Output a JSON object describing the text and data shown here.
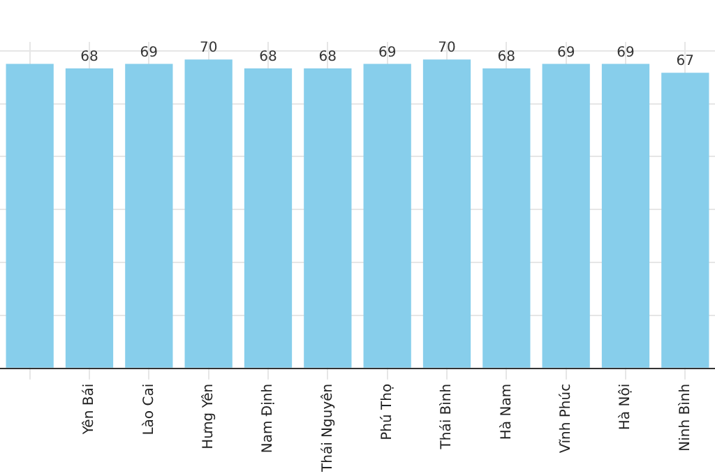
{
  "chart_data": {
    "type": "bar",
    "categories": [
      null,
      "Yên Bái",
      "Lào Cai",
      "Hưng Yên",
      "Nam Định",
      "Thái Nguyên",
      "Phú Thọ",
      "Thái Bình",
      "Hà Nam",
      "Vĩnh Phúc",
      "Hà Nội",
      "Ninh Bình"
    ],
    "values": [
      69,
      68,
      69,
      70,
      68,
      68,
      69,
      70,
      68,
      69,
      69,
      67
    ],
    "value_labels": [
      null,
      "68",
      "69",
      "70",
      "68",
      "68",
      "69",
      "70",
      "68",
      "69",
      "69",
      "67"
    ],
    "color": "#87ceeb",
    "ylim": [
      0,
      74
    ],
    "yticks": [
      {
        "value": 0,
        "label": null
      },
      {
        "value": 12,
        "label": null
      },
      {
        "value": 24,
        "label": null
      },
      {
        "value": 36,
        "label": null
      },
      {
        "value": 48,
        "label": null
      },
      {
        "value": 60,
        "label": null
      },
      {
        "value": 72,
        "label": null
      }
    ],
    "grid": true,
    "tick_labels": "x"
  }
}
